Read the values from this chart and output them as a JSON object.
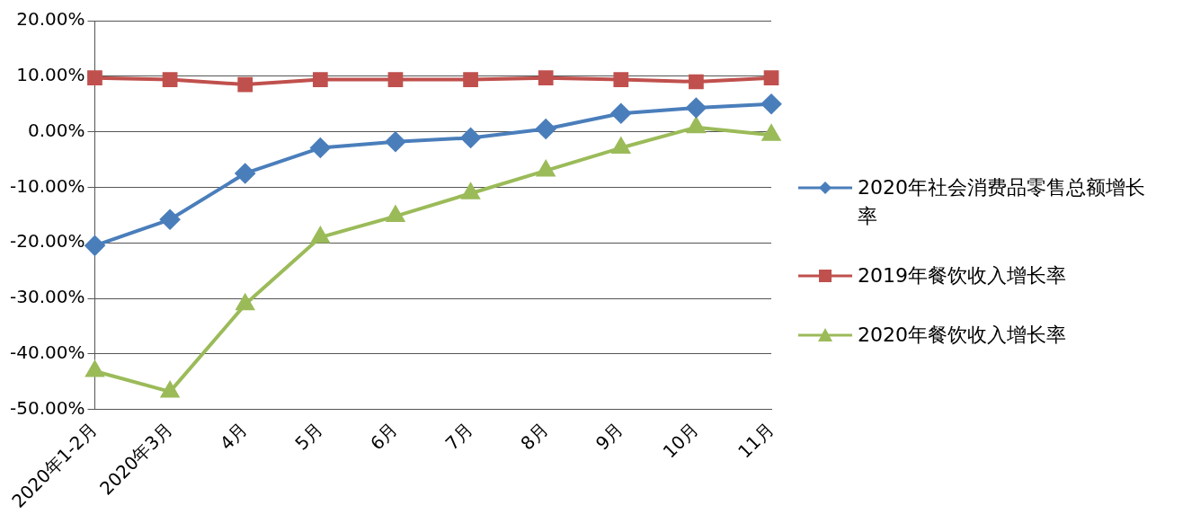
{
  "chart_data": {
    "type": "line",
    "categories": [
      "2020年1-2月",
      "2020年3月",
      "4月",
      "5月",
      "6月",
      "7月",
      "8月",
      "9月",
      "10月",
      "11月"
    ],
    "series": [
      {
        "name": "2020年社会消费品零售总额增长率",
        "color": "#4a7ebb",
        "marker": "diamond",
        "values": [
          -20.5,
          -15.8,
          -7.5,
          -2.9,
          -1.8,
          -1.1,
          0.5,
          3.3,
          4.3,
          5.0
        ]
      },
      {
        "name": "2019年餐饮收入增长率",
        "color": "#c0504d",
        "marker": "square",
        "values": [
          9.7,
          9.4,
          8.5,
          9.4,
          9.4,
          9.4,
          9.7,
          9.4,
          9.0,
          9.7
        ]
      },
      {
        "name": "2020年餐饮收入增长率",
        "color": "#9bbb59",
        "marker": "triangle",
        "values": [
          -43.1,
          -46.8,
          -31.1,
          -19.0,
          -15.2,
          -11.1,
          -7.0,
          -2.9,
          0.8,
          -0.6
        ]
      }
    ],
    "ylim": [
      -50,
      20
    ],
    "yticks": [
      {
        "value": -50,
        "label": "-50.00%"
      },
      {
        "value": -40,
        "label": "-40.00%"
      },
      {
        "value": -30,
        "label": "-30.00%"
      },
      {
        "value": -20,
        "label": "-20.00%"
      },
      {
        "value": -10,
        "label": "-10.00%"
      },
      {
        "value": 0,
        "label": "0.00%"
      },
      {
        "value": 10,
        "label": "10.00%"
      },
      {
        "value": 20,
        "label": "20.00%"
      }
    ],
    "grid": "y",
    "legend": "right",
    "line_style": "solid"
  }
}
